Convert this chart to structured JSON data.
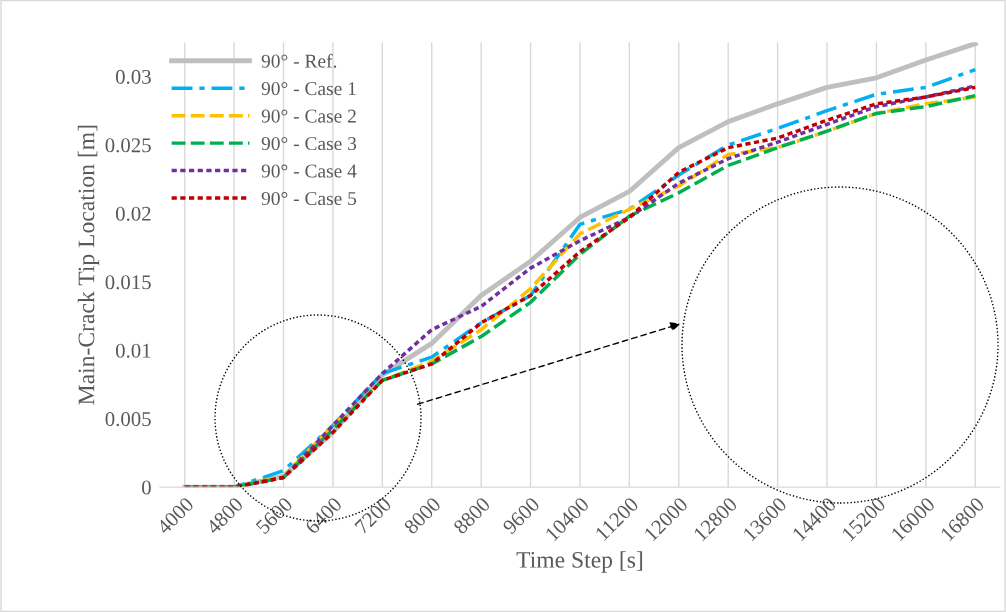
{
  "chart_data": {
    "type": "line",
    "xlabel": "Time Step [s]",
    "ylabel": "Main-Crack Tip Location [m]",
    "x": [
      4000,
      4800,
      5600,
      6400,
      7200,
      8000,
      8800,
      9600,
      10400,
      11200,
      12000,
      12800,
      13600,
      14400,
      15200,
      16000,
      16800
    ],
    "series": [
      {
        "name": "90° - Ref.",
        "color": "#bfbfbf",
        "line_style": "solid",
        "values": [
          0,
          0,
          0.0008,
          0.004,
          0.0082,
          0.0105,
          0.014,
          0.0165,
          0.0197,
          0.0216,
          0.0248,
          0.0267,
          0.028,
          0.0292,
          0.0299,
          0.0312,
          0.0324
        ]
      },
      {
        "name": "90° - Case 1",
        "color": "#00b0f0",
        "line_style": "dashdot",
        "values": [
          0,
          0,
          0.0012,
          0.0045,
          0.0083,
          0.0095,
          0.012,
          0.014,
          0.0192,
          0.0203,
          0.0228,
          0.025,
          0.0262,
          0.0275,
          0.0287,
          0.0292,
          0.0305
        ]
      },
      {
        "name": "90° - Case 2",
        "color": "#ffc000",
        "line_style": "dashed",
        "values": [
          0,
          0,
          0.0008,
          0.0045,
          0.0078,
          0.0092,
          0.0115,
          0.0145,
          0.0185,
          0.0203,
          0.022,
          0.0243,
          0.0248,
          0.026,
          0.0273,
          0.028,
          0.0285
        ]
      },
      {
        "name": "90° - Case 3",
        "color": "#00b050",
        "line_style": "dashed",
        "values": [
          0,
          0,
          0.0007,
          0.0042,
          0.0078,
          0.009,
          0.011,
          0.0135,
          0.017,
          0.0198,
          0.0215,
          0.0235,
          0.0248,
          0.026,
          0.0273,
          0.0278,
          0.0286
        ]
      },
      {
        "name": "90° - Case 4",
        "color": "#7030a0",
        "line_style": "dotted",
        "values": [
          0,
          0,
          0.0007,
          0.0045,
          0.0083,
          0.0115,
          0.0132,
          0.016,
          0.018,
          0.0197,
          0.0222,
          0.024,
          0.0252,
          0.0265,
          0.0278,
          0.0285,
          0.0293
        ]
      },
      {
        "name": "90° - Case 5",
        "color": "#c00000",
        "line_style": "dotted",
        "values": [
          0,
          0,
          0.0007,
          0.004,
          0.0078,
          0.009,
          0.012,
          0.014,
          0.0172,
          0.0197,
          0.023,
          0.0248,
          0.0255,
          0.0268,
          0.028,
          0.0285,
          0.0292
        ]
      }
    ],
    "xlim": [
      3600,
      17200
    ],
    "xticks": [
      4000,
      4800,
      5600,
      6400,
      7200,
      8000,
      8800,
      9600,
      10400,
      11200,
      12000,
      12800,
      13600,
      14400,
      15200,
      16000,
      16800
    ],
    "ylim": [
      0,
      0.0325
    ],
    "yticks": [
      0,
      0.005,
      0.01,
      0.015,
      0.02,
      0.025,
      0.03
    ],
    "grid": "x",
    "legend": "top left",
    "marker": "none"
  }
}
